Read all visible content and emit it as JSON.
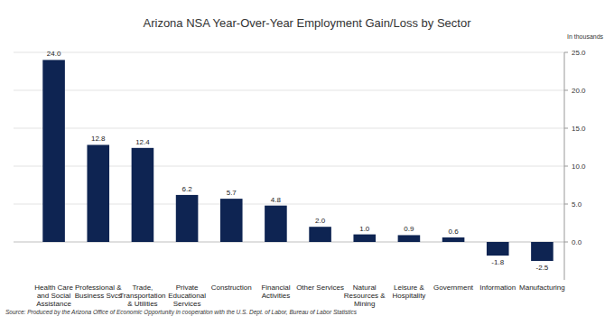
{
  "chart_data": {
    "type": "bar",
    "title": "Arizona NSA Year-Over-Year Employment Gain/Loss by Sector",
    "y_label": "In thousands",
    "source": "Source: Produced by the Arizona Office of Economic Opportunity in cooperation with the U.S. Dept. of Labor, Bureau of Labor Statistics",
    "categories": [
      "Health Care and Social Assistance",
      "Professional & Business Svcs",
      "Trade, Transportation & Utilities",
      "Private Educational Services",
      "Construction",
      "Financial Activities",
      "Other Services",
      "Natural Resources & Mining",
      "Leisure & Hospitality",
      "Government",
      "Information",
      "Manufacturing"
    ],
    "values": [
      24.0,
      12.8,
      12.4,
      6.2,
      5.7,
      4.8,
      2.0,
      1.0,
      0.9,
      0.6,
      -1.8,
      -2.5
    ],
    "value_labels": [
      "24.0",
      "12.8",
      "12.4",
      "6.2",
      "5.7",
      "4.8",
      "2.0",
      "1.0",
      "0.9",
      "0.6",
      "-1.8",
      "-2.5"
    ],
    "color": "#0e2452",
    "ylim": [
      -5,
      25
    ],
    "yticks": [
      {
        "value": 0,
        "label": "0.0"
      },
      {
        "value": 5,
        "label": "5.0"
      },
      {
        "value": 10,
        "label": "10.0"
      },
      {
        "value": 15,
        "label": "15.0"
      },
      {
        "value": 20,
        "label": "20.0"
      },
      {
        "value": 25,
        "label": "25.0"
      }
    ],
    "grid": true,
    "data_labels": true
  }
}
